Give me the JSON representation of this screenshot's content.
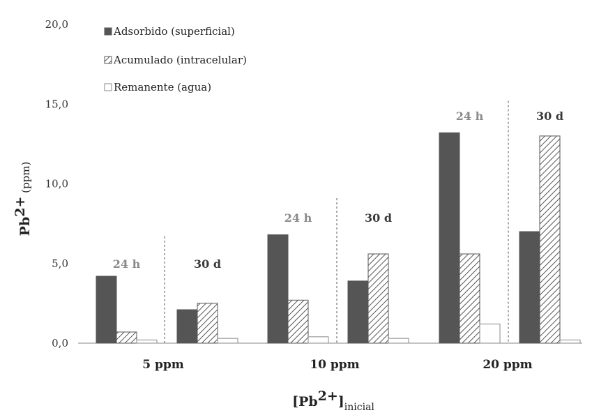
{
  "chart_data": {
    "type": "bar",
    "ylabel": {
      "main": "Pb",
      "sup": "2+",
      "unit": "(ppm)"
    },
    "xlabel": {
      "open": "[Pb",
      "sup": "2+",
      "close": "]",
      "sub": "inicial"
    },
    "ylim": [
      0,
      20
    ],
    "yticks": [
      "0,0",
      "5,0",
      "10,0",
      "15,0",
      "20,0"
    ],
    "ytick_values": [
      0,
      5,
      10,
      15,
      20
    ],
    "grid": false,
    "legend_position": "top-left",
    "series": [
      {
        "name": "Adsorbido (superficial)",
        "color": "#555555",
        "pattern": "solid"
      },
      {
        "name": "Acumulado (intracelular)",
        "color": "#ffffff",
        "pattern": "diagonal-hatch"
      },
      {
        "name": "Remanente (agua)",
        "color": "#ffffff",
        "pattern": "empty"
      }
    ],
    "groups": [
      {
        "label": "5 ppm",
        "periods": [
          {
            "label": "24 h",
            "values": [
              4.2,
              0.7,
              0.2
            ]
          },
          {
            "label": "30 d",
            "values": [
              2.1,
              2.5,
              0.3
            ]
          }
        ]
      },
      {
        "label": "10 ppm",
        "periods": [
          {
            "label": "24 h",
            "values": [
              6.8,
              2.7,
              0.4
            ]
          },
          {
            "label": "30 d",
            "values": [
              3.9,
              5.6,
              0.3
            ]
          }
        ]
      },
      {
        "label": "20 ppm",
        "periods": [
          {
            "label": "24 h",
            "values": [
              13.2,
              5.6,
              1.2
            ]
          },
          {
            "label": "30 d",
            "values": [
              7.0,
              13.0,
              0.2
            ]
          }
        ]
      }
    ]
  }
}
